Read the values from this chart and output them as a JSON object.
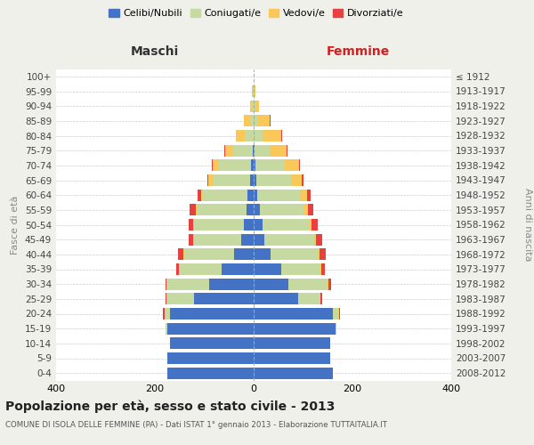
{
  "age_groups": [
    "0-4",
    "5-9",
    "10-14",
    "15-19",
    "20-24",
    "25-29",
    "30-34",
    "35-39",
    "40-44",
    "45-49",
    "50-54",
    "55-59",
    "60-64",
    "65-69",
    "70-74",
    "75-79",
    "80-84",
    "85-89",
    "90-94",
    "95-99",
    "100+"
  ],
  "birth_years": [
    "2008-2012",
    "2003-2007",
    "1998-2002",
    "1993-1997",
    "1988-1992",
    "1983-1987",
    "1978-1982",
    "1973-1977",
    "1968-1972",
    "1963-1967",
    "1958-1962",
    "1953-1957",
    "1948-1952",
    "1943-1947",
    "1938-1942",
    "1933-1937",
    "1928-1932",
    "1923-1927",
    "1918-1922",
    "1913-1917",
    "≤ 1912"
  ],
  "maschi": {
    "celibi": [
      175,
      175,
      170,
      175,
      170,
      120,
      90,
      65,
      40,
      25,
      20,
      15,
      12,
      8,
      5,
      2,
      0,
      0,
      0,
      0,
      0
    ],
    "coniugati": [
      0,
      0,
      0,
      3,
      10,
      55,
      85,
      85,
      100,
      95,
      100,
      100,
      90,
      75,
      65,
      40,
      18,
      8,
      3,
      1,
      0
    ],
    "vedovi": [
      0,
      0,
      0,
      0,
      1,
      1,
      1,
      1,
      2,
      2,
      3,
      3,
      5,
      8,
      12,
      15,
      18,
      12,
      5,
      2,
      0
    ],
    "divorziati": [
      0,
      0,
      0,
      0,
      2,
      2,
      3,
      5,
      12,
      10,
      8,
      12,
      6,
      2,
      2,
      2,
      0,
      0,
      0,
      0,
      0
    ]
  },
  "femmine": {
    "nubili": [
      160,
      155,
      155,
      165,
      160,
      90,
      70,
      55,
      35,
      22,
      18,
      12,
      8,
      5,
      3,
      2,
      0,
      0,
      0,
      0,
      0
    ],
    "coniugate": [
      0,
      0,
      0,
      3,
      12,
      45,
      80,
      80,
      95,
      100,
      95,
      90,
      85,
      70,
      60,
      30,
      18,
      8,
      3,
      1,
      0
    ],
    "vedove": [
      0,
      0,
      0,
      0,
      1,
      1,
      1,
      2,
      4,
      5,
      5,
      8,
      15,
      22,
      28,
      35,
      38,
      25,
      8,
      3,
      0
    ],
    "divorziate": [
      0,
      0,
      0,
      0,
      1,
      2,
      5,
      8,
      12,
      12,
      12,
      10,
      8,
      3,
      3,
      2,
      1,
      1,
      0,
      0,
      0
    ]
  },
  "colors": {
    "celibi": "#4472C4",
    "coniugati": "#C5D9A0",
    "vedovi": "#FAC858",
    "divorziati": "#E84040"
  },
  "xlim": 400,
  "title": "Popolazione per età, sesso e stato civile - 2013",
  "subtitle": "COMUNE DI ISOLA DELLE FEMMINE (PA) - Dati ISTAT 1° gennaio 2013 - Elaborazione TUTTAITALIA.IT",
  "ylabel_left": "Fasce di età",
  "ylabel_right": "Anni di nascita",
  "xlabel_left": "Maschi",
  "xlabel_right": "Femmine",
  "bg_color": "#f0f0eb",
  "plot_bg": "#ffffff"
}
